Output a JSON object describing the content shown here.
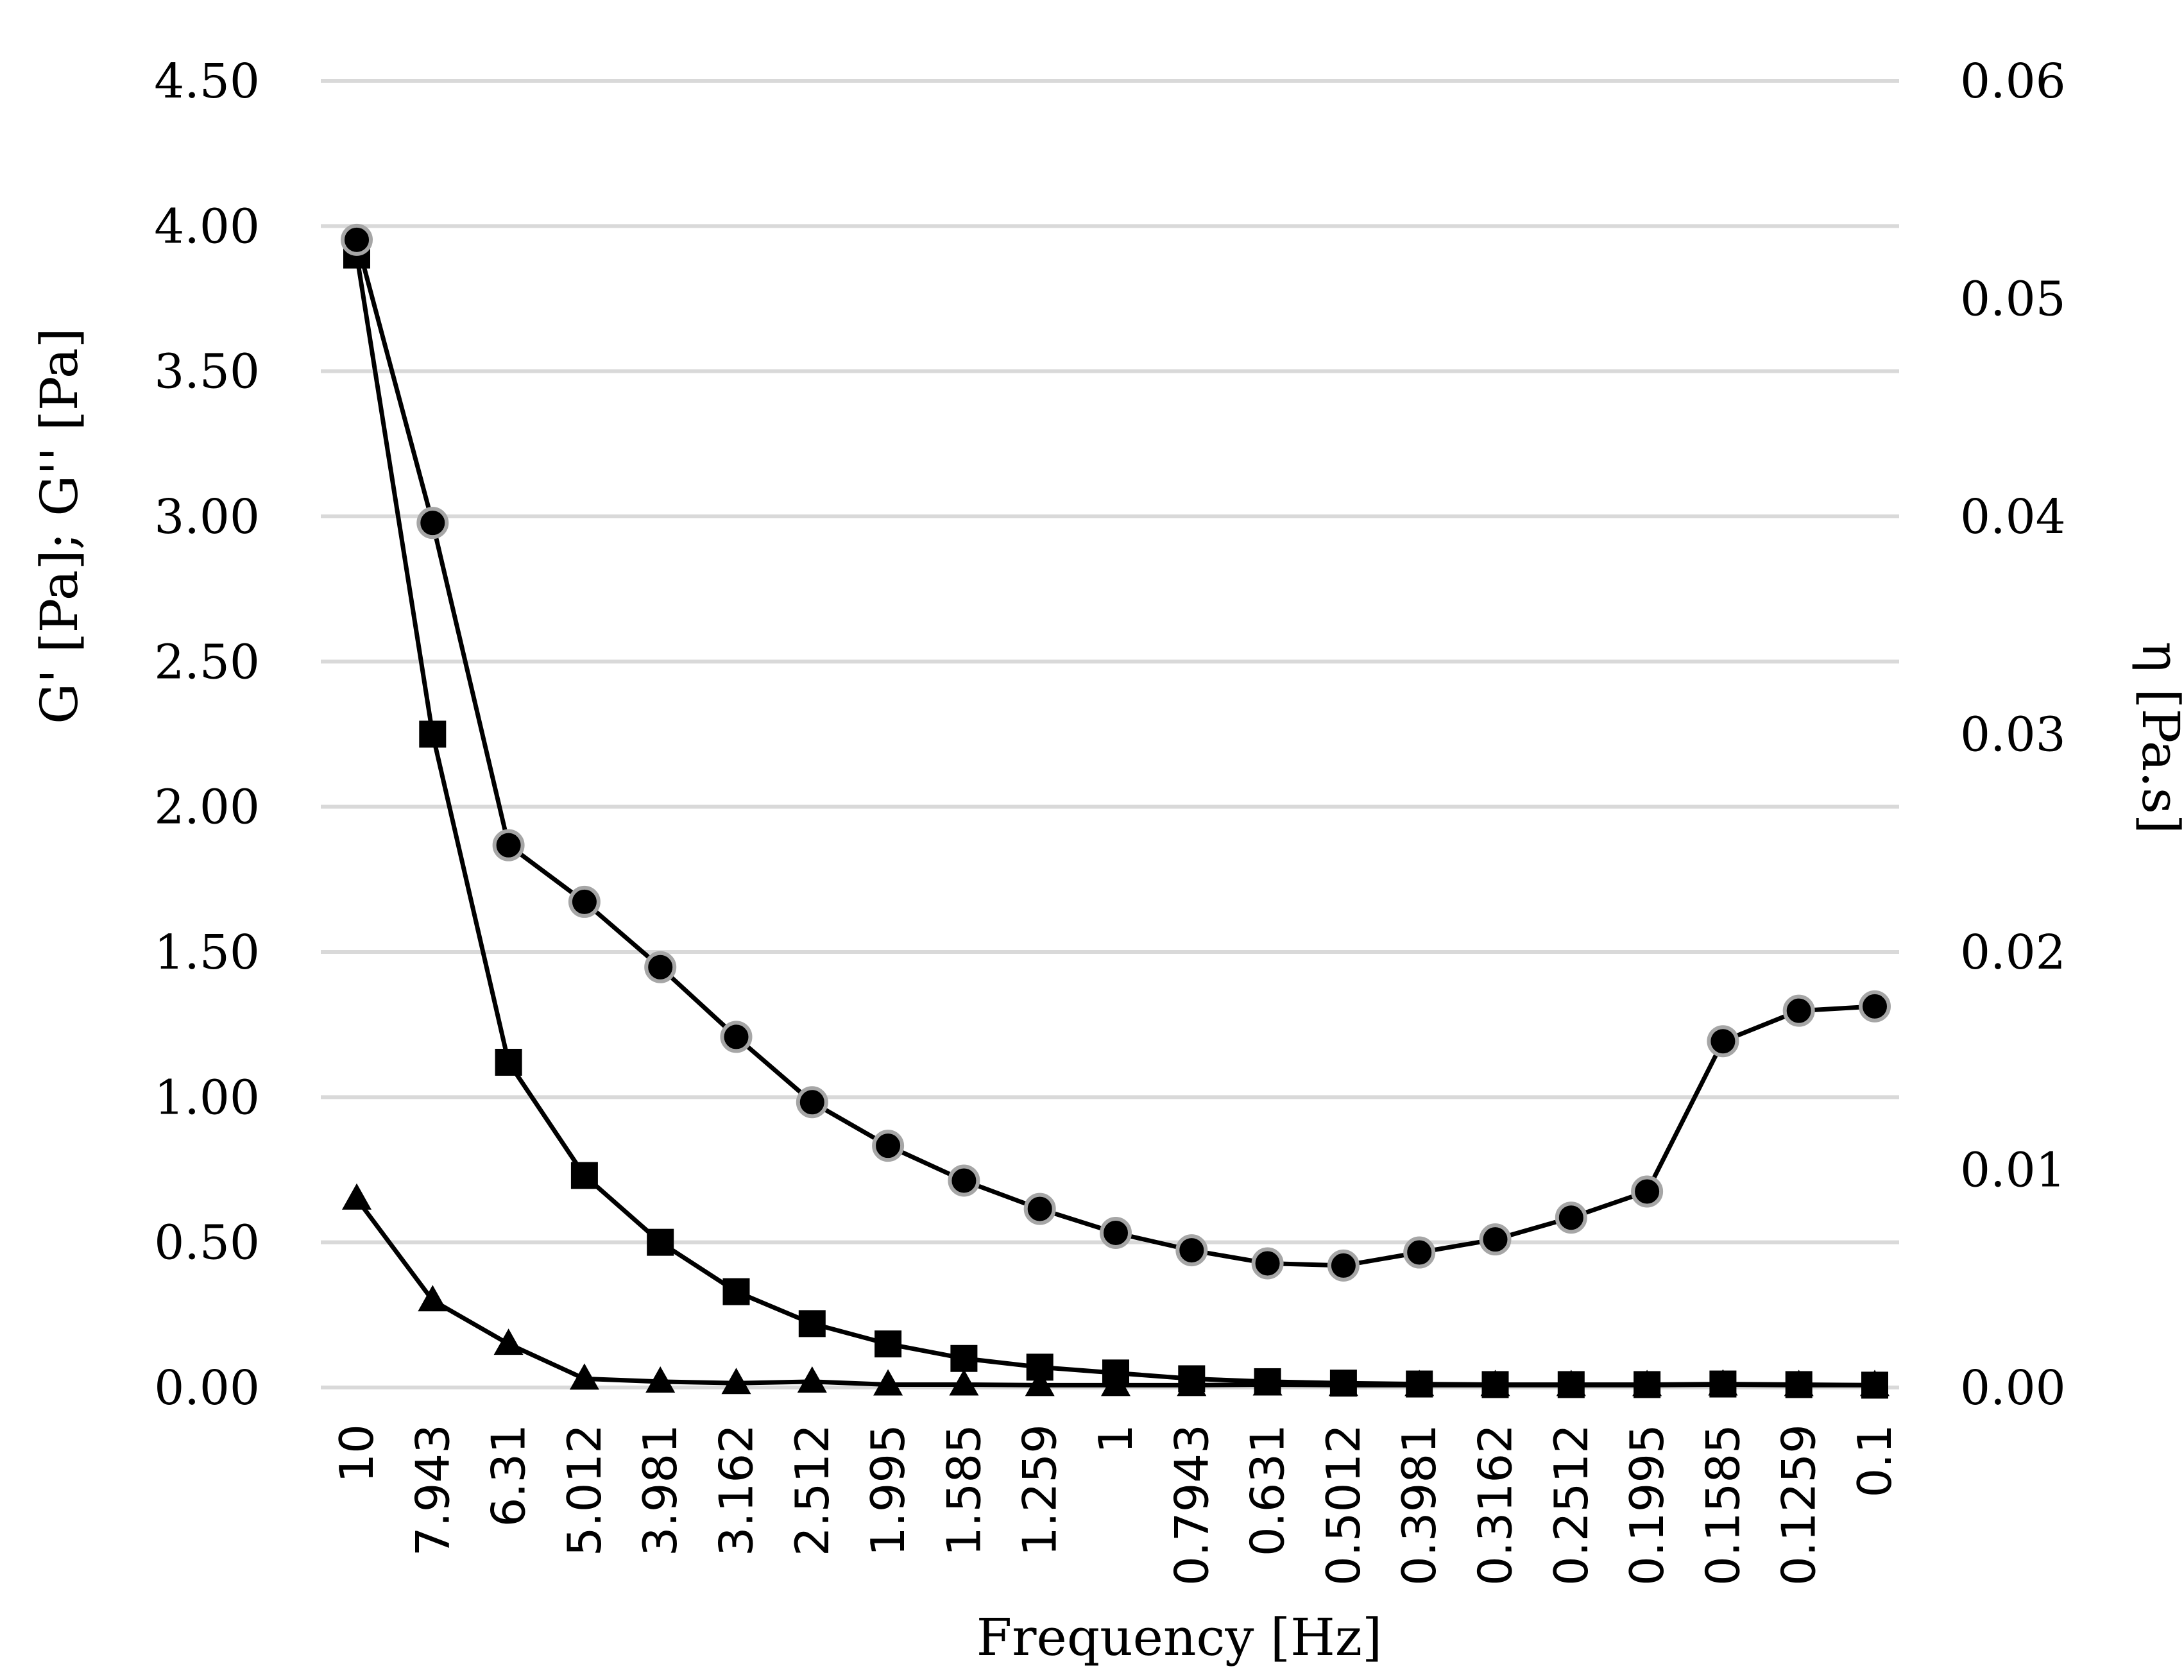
{
  "chart_data": {
    "type": "line",
    "xlabel": "Frequency [Hz]",
    "ylabel_left": "G' [Pa]; G'' [Pa]",
    "ylabel_right": "η [Pa.s]",
    "ylim_left": [
      0,
      4.5
    ],
    "ylim_right": [
      0,
      0.06
    ],
    "yticks_left": [
      "0.00",
      "0.50",
      "1.00",
      "1.50",
      "2.00",
      "2.50",
      "3.00",
      "3.50",
      "4.00",
      "4.50"
    ],
    "yticks_right": [
      "0.00",
      "0.01",
      "0.02",
      "0.03",
      "0.04",
      "0.05",
      "0.06"
    ],
    "grid": true,
    "categories": [
      "10",
      "7.943",
      "6.31",
      "5.012",
      "3.981",
      "3.162",
      "2.512",
      "1.995",
      "1.585",
      "1.259",
      "1",
      "0.7943",
      "0.631",
      "0.5012",
      "0.3981",
      "0.3162",
      "0.2512",
      "0.1995",
      "0.1585",
      "0.1259",
      "0.1"
    ],
    "series": [
      {
        "marker": "square",
        "axis": "left",
        "values": [
          3.9,
          2.25,
          1.12,
          0.73,
          0.5,
          0.33,
          0.22,
          0.15,
          0.1,
          0.07,
          0.05,
          0.03,
          0.02,
          0.015,
          0.012,
          0.01,
          0.01,
          0.01,
          0.012,
          0.01,
          0.008
        ]
      },
      {
        "marker": "triangle",
        "axis": "left",
        "values": [
          0.65,
          0.3,
          0.15,
          0.03,
          0.02,
          0.015,
          0.02,
          0.01,
          0.01,
          0.008,
          0.008,
          0.008,
          0.01,
          0.008,
          0.008,
          0.008,
          0.008,
          0.008,
          0.01,
          0.008,
          0.008
        ]
      },
      {
        "marker": "circle",
        "axis": "right",
        "values": [
          0.0527,
          0.0397,
          0.0249,
          0.0223,
          0.0193,
          0.0161,
          0.0131,
          0.0111,
          0.0095,
          0.0082,
          0.0071,
          0.0063,
          0.0057,
          0.0056,
          0.0062,
          0.0068,
          0.0078,
          0.009,
          0.0159,
          0.0173,
          0.0175
        ]
      }
    ]
  }
}
